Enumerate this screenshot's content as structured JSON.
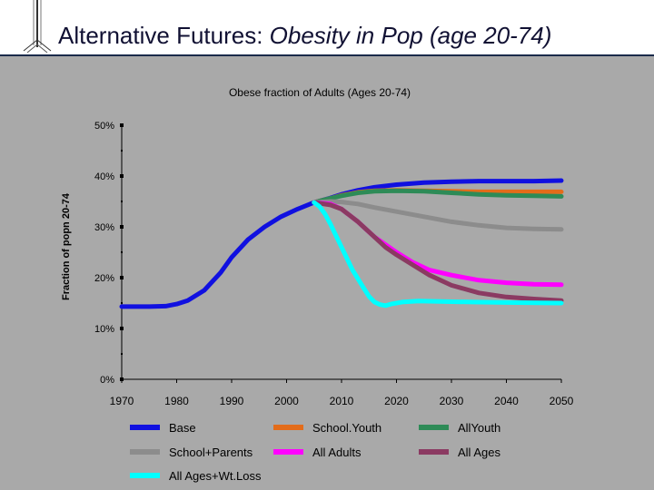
{
  "slide": {
    "title_plain": "Alternative Futures: ",
    "title_italic": "Obesity in Pop (age 20-74)"
  },
  "colors": {
    "header_background": "#ffffff",
    "panel_background": "#a9a9a9",
    "title_text": "#111133",
    "axis": "#000000"
  },
  "chart_data": {
    "type": "line",
    "title": "Obese fraction of Adults (Ages 20-74)",
    "xlabel": "",
    "ylabel": "Fraction of popn 20-74",
    "xlim": [
      1970,
      2050
    ],
    "ylim": [
      0,
      50
    ],
    "x_ticks": [
      1970,
      1980,
      1990,
      2000,
      2010,
      2020,
      2030,
      2040,
      2050
    ],
    "y_ticks": [
      0,
      10,
      20,
      30,
      40,
      50
    ],
    "y_tick_labels": [
      "0%",
      "10%",
      "20%",
      "30%",
      "40%",
      "50%"
    ],
    "grid": false,
    "legend_position": "bottom",
    "series": [
      {
        "name": "Base",
        "color": "#1010e0",
        "points": [
          [
            1970,
            14.3
          ],
          [
            1975,
            14.3
          ],
          [
            1978,
            14.4
          ],
          [
            1980,
            14.8
          ],
          [
            1982,
            15.5
          ],
          [
            1985,
            17.5
          ],
          [
            1988,
            21
          ],
          [
            1990,
            24
          ],
          [
            1993,
            27.5
          ],
          [
            1996,
            30
          ],
          [
            1999,
            32
          ],
          [
            2002,
            33.5
          ],
          [
            2005,
            34.8
          ],
          [
            2008,
            35.7
          ],
          [
            2010,
            36.4
          ],
          [
            2013,
            37.2
          ],
          [
            2016,
            37.8
          ],
          [
            2020,
            38.3
          ],
          [
            2025,
            38.7
          ],
          [
            2030,
            38.9
          ],
          [
            2035,
            39
          ],
          [
            2040,
            39
          ],
          [
            2045,
            39
          ],
          [
            2050,
            39.1
          ]
        ]
      },
      {
        "name": "School.Youth",
        "color": "#e36c1a",
        "points": [
          [
            2005,
            34.8
          ],
          [
            2008,
            35.6
          ],
          [
            2010,
            36.2
          ],
          [
            2013,
            36.8
          ],
          [
            2016,
            37.1
          ],
          [
            2020,
            37.2
          ],
          [
            2025,
            37.1
          ],
          [
            2030,
            37
          ],
          [
            2035,
            36.9
          ],
          [
            2040,
            36.9
          ],
          [
            2045,
            36.9
          ],
          [
            2050,
            36.9
          ]
        ]
      },
      {
        "name": "AllYouth",
        "color": "#2e8b57",
        "points": [
          [
            2005,
            34.8
          ],
          [
            2008,
            35.6
          ],
          [
            2010,
            36.1
          ],
          [
            2013,
            36.7
          ],
          [
            2016,
            37
          ],
          [
            2020,
            37.1
          ],
          [
            2025,
            37
          ],
          [
            2030,
            36.7
          ],
          [
            2035,
            36.4
          ],
          [
            2040,
            36.2
          ],
          [
            2045,
            36.1
          ],
          [
            2050,
            36
          ]
        ]
      },
      {
        "name": "School+Parents",
        "color": "#8c8c8c",
        "points": [
          [
            2005,
            34.8
          ],
          [
            2008,
            35
          ],
          [
            2010,
            34.9
          ],
          [
            2013,
            34.5
          ],
          [
            2016,
            33.8
          ],
          [
            2020,
            33
          ],
          [
            2025,
            32
          ],
          [
            2030,
            31
          ],
          [
            2035,
            30.3
          ],
          [
            2040,
            29.8
          ],
          [
            2045,
            29.6
          ],
          [
            2050,
            29.5
          ]
        ]
      },
      {
        "name": "All Adults",
        "color": "#ff00ff",
        "points": [
          [
            2005,
            34.8
          ],
          [
            2008,
            34.5
          ],
          [
            2010,
            33.5
          ],
          [
            2013,
            31
          ],
          [
            2016,
            28
          ],
          [
            2018,
            26.5
          ],
          [
            2020,
            25
          ],
          [
            2023,
            23
          ],
          [
            2026,
            21.5
          ],
          [
            2030,
            20.5
          ],
          [
            2035,
            19.5
          ],
          [
            2040,
            19
          ],
          [
            2045,
            18.7
          ],
          [
            2050,
            18.6
          ]
        ]
      },
      {
        "name": "All Ages",
        "color": "#8b3a62",
        "points": [
          [
            2005,
            34.8
          ],
          [
            2008,
            34.3
          ],
          [
            2010,
            33.5
          ],
          [
            2013,
            31
          ],
          [
            2016,
            28
          ],
          [
            2018,
            26
          ],
          [
            2020,
            24.5
          ],
          [
            2023,
            22.5
          ],
          [
            2026,
            20.5
          ],
          [
            2030,
            18.5
          ],
          [
            2035,
            17
          ],
          [
            2040,
            16.2
          ],
          [
            2045,
            15.8
          ],
          [
            2050,
            15.5
          ]
        ]
      },
      {
        "name": "All Ages+Wt.Loss",
        "color": "#00ffff",
        "points": [
          [
            2005,
            34.8
          ],
          [
            2006,
            34
          ],
          [
            2007,
            32.5
          ],
          [
            2008,
            30.5
          ],
          [
            2010,
            26
          ],
          [
            2012,
            21.5
          ],
          [
            2014,
            18
          ],
          [
            2015,
            16.3
          ],
          [
            2016,
            15.2
          ],
          [
            2017,
            14.7
          ],
          [
            2018,
            14.5
          ],
          [
            2019,
            14.8
          ],
          [
            2021,
            15.2
          ],
          [
            2024,
            15.4
          ],
          [
            2028,
            15.3
          ],
          [
            2034,
            15.2
          ],
          [
            2040,
            15.1
          ],
          [
            2050,
            15
          ]
        ]
      }
    ]
  }
}
